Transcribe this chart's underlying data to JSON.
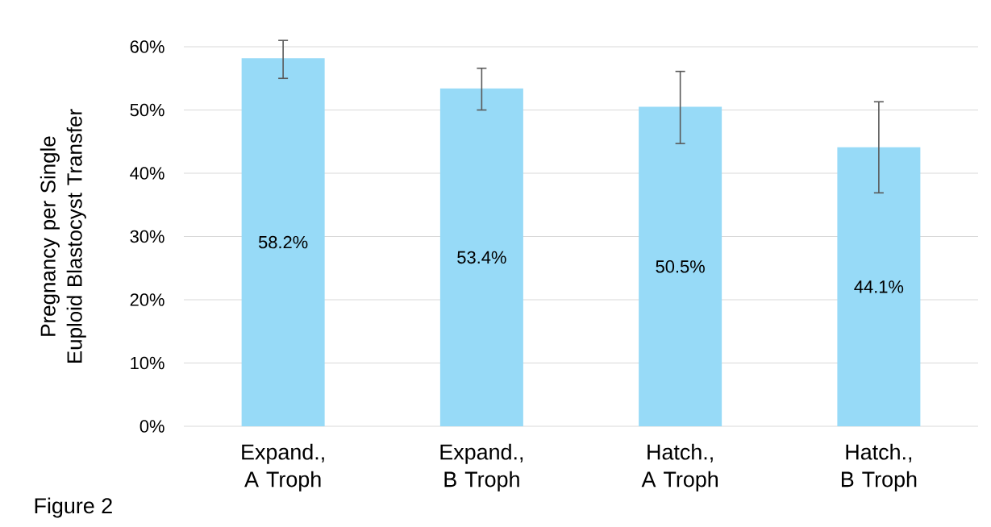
{
  "chart_data": {
    "type": "bar",
    "categories": [
      "Expand., A Troph",
      "Expand., B Troph",
      "Hatch., A Troph",
      "Hatch., B Troph"
    ],
    "values": [
      58.2,
      53.4,
      50.5,
      44.1
    ],
    "errors": [
      [
        55.0,
        61.0
      ],
      [
        50.0,
        56.6
      ],
      [
        44.7,
        56.1
      ],
      [
        36.9,
        51.3
      ]
    ],
    "value_labels": [
      "58.2%",
      "53.4%",
      "50.5%",
      "44.1%"
    ],
    "color": "#97daf7",
    "ylabel": "Pregnancy per Single Euploid Blastocyst Transfer",
    "ylim": [
      0,
      60
    ],
    "yticks": [
      {
        "value": 0,
        "label": "0%"
      },
      {
        "value": 10,
        "label": "10%"
      },
      {
        "value": 20,
        "label": "20%"
      },
      {
        "value": 30,
        "label": "30%"
      },
      {
        "value": 40,
        "label": "40%"
      },
      {
        "value": 50,
        "label": "50%"
      },
      {
        "value": 60,
        "label": "60%"
      }
    ],
    "grid": "y",
    "annotations": [
      "Figure 2"
    ]
  }
}
